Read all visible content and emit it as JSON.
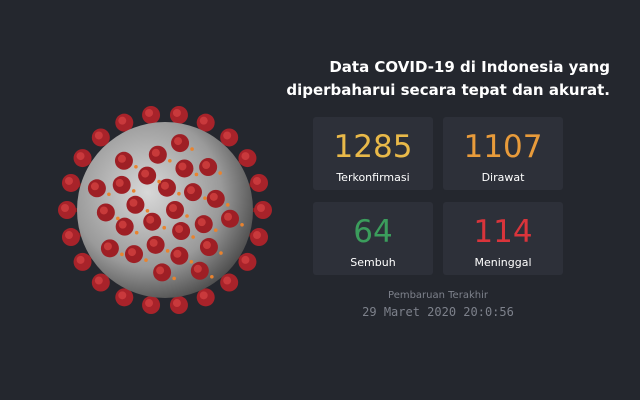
{
  "header": {
    "title_lines": [
      "Data COVID-19 di Indonesia yang",
      "diperbaharui secara tepat dan akurat."
    ]
  },
  "stats": [
    {
      "value": "1285",
      "label": "Terkonfirmasi"
    },
    {
      "value": "1107",
      "label": "Dirawat"
    },
    {
      "value": "64",
      "label": "Sembuh"
    },
    {
      "value": "114",
      "label": "Meninggal"
    }
  ],
  "footer": {
    "caption": "Pembaruan Terakhir",
    "timestamp": "29 Maret 2020 20:0:56"
  }
}
